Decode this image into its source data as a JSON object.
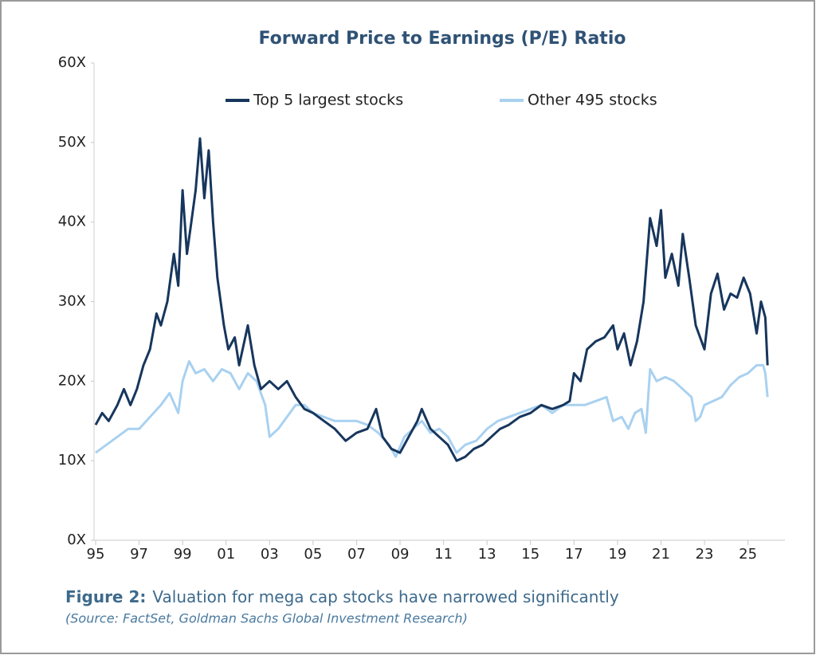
{
  "chart_data": {
    "type": "line",
    "title": "Forward Price to Earnings (P/E) Ratio",
    "figure_label": "Figure 2:",
    "caption": "Valuation for mega cap stocks have narrowed significantly",
    "source": "(Source: FactSet, Goldman Sachs Global Investment Research)",
    "xlim": [
      1995,
      2026.7
    ],
    "xticks": [
      {
        "value": 1995,
        "label": "95"
      },
      {
        "value": 1997,
        "label": "97"
      },
      {
        "value": 1999,
        "label": "99"
      },
      {
        "value": 2001,
        "label": "01"
      },
      {
        "value": 2003,
        "label": "03"
      },
      {
        "value": 2005,
        "label": "05"
      },
      {
        "value": 2007,
        "label": "07"
      },
      {
        "value": 2009,
        "label": "09"
      },
      {
        "value": 2011,
        "label": "11"
      },
      {
        "value": 2013,
        "label": "13"
      },
      {
        "value": 2015,
        "label": "15"
      },
      {
        "value": 2017,
        "label": "17"
      },
      {
        "value": 2019,
        "label": "19"
      },
      {
        "value": 2021,
        "label": "21"
      },
      {
        "value": 2023,
        "label": "23"
      },
      {
        "value": 2025,
        "label": "25"
      }
    ],
    "ylim": [
      0,
      60
    ],
    "yticks": [
      {
        "value": 0,
        "label": "0X"
      },
      {
        "value": 10,
        "label": "10X"
      },
      {
        "value": 20,
        "label": "20X"
      },
      {
        "value": 30,
        "label": "30X"
      },
      {
        "value": 40,
        "label": "40X"
      },
      {
        "value": 50,
        "label": "50X"
      },
      {
        "value": 60,
        "label": "60X"
      }
    ],
    "grid": false,
    "series": [
      {
        "name": "Top 5 largest stocks",
        "color": "#17365d",
        "x": [
          1995.0,
          1995.3,
          1995.6,
          1996.0,
          1996.3,
          1996.6,
          1996.9,
          1997.2,
          1997.5,
          1997.8,
          1998.0,
          1998.3,
          1998.6,
          1998.8,
          1999.0,
          1999.2,
          1999.4,
          1999.6,
          1999.8,
          2000.0,
          2000.2,
          2000.4,
          2000.6,
          2000.9,
          2001.1,
          2001.4,
          2001.6,
          2002.0,
          2002.3,
          2002.6,
          2003.0,
          2003.4,
          2003.8,
          2004.2,
          2004.6,
          2005.0,
          2005.5,
          2006.0,
          2006.5,
          2007.0,
          2007.5,
          2007.9,
          2008.2,
          2008.6,
          2009.0,
          2009.4,
          2009.8,
          2010.0,
          2010.4,
          2010.8,
          2011.2,
          2011.6,
          2012.0,
          2012.4,
          2012.8,
          2013.2,
          2013.6,
          2014.0,
          2014.5,
          2015.0,
          2015.5,
          2016.0,
          2016.5,
          2016.8,
          2017.0,
          2017.3,
          2017.6,
          2018.0,
          2018.4,
          2018.8,
          2019.0,
          2019.3,
          2019.6,
          2019.9,
          2020.2,
          2020.5,
          2020.8,
          2021.0,
          2021.2,
          2021.5,
          2021.8,
          2022.0,
          2022.3,
          2022.6,
          2023.0,
          2023.3,
          2023.6,
          2023.9,
          2024.2,
          2024.5,
          2024.8,
          2025.1,
          2025.4,
          2025.6,
          2025.8,
          2025.9
        ],
        "values": [
          14.5,
          16,
          15,
          17,
          19,
          17,
          19,
          22,
          24,
          28.5,
          27,
          30,
          36,
          32,
          44,
          36,
          40,
          44,
          50.5,
          43,
          49,
          40,
          33,
          27,
          24,
          25.5,
          22,
          27,
          22,
          19,
          20,
          19,
          20,
          18,
          16.5,
          16,
          15,
          14,
          12.5,
          13.5,
          14,
          16.5,
          13,
          11.5,
          11,
          13,
          15,
          16.5,
          14,
          13,
          12,
          10,
          10.5,
          11.5,
          12,
          13,
          14,
          14.5,
          15.5,
          16,
          17,
          16.5,
          17,
          17.5,
          21,
          20,
          24,
          25,
          25.5,
          27,
          24,
          26,
          22,
          25,
          30,
          40.5,
          37,
          41.5,
          33,
          36,
          32,
          38.5,
          33,
          27,
          24,
          31,
          33.5,
          29,
          31,
          30.5,
          33,
          31,
          26,
          30,
          28,
          22
        ]
      },
      {
        "name": "Other 495 stocks",
        "color": "#a9d1f0",
        "x": [
          1995.0,
          1995.5,
          1996.0,
          1996.5,
          1997.0,
          1997.5,
          1998.0,
          1998.4,
          1998.8,
          1999.0,
          1999.3,
          1999.6,
          2000.0,
          2000.4,
          2000.8,
          2001.2,
          2001.6,
          2002.0,
          2002.4,
          2002.8,
          2003.0,
          2003.4,
          2003.8,
          2004.2,
          2004.6,
          2005.0,
          2005.5,
          2006.0,
          2006.5,
          2007.0,
          2007.5,
          2008.0,
          2008.5,
          2008.8,
          2009.2,
          2009.6,
          2010.0,
          2010.4,
          2010.8,
          2011.2,
          2011.6,
          2012.0,
          2012.5,
          2013.0,
          2013.5,
          2014.0,
          2014.5,
          2015.0,
          2015.5,
          2016.0,
          2016.5,
          2017.0,
          2017.5,
          2018.0,
          2018.5,
          2018.8,
          2019.2,
          2019.5,
          2019.8,
          2020.1,
          2020.3,
          2020.5,
          2020.8,
          2021.2,
          2021.6,
          2022.0,
          2022.4,
          2022.6,
          2022.8,
          2023.0,
          2023.4,
          2023.8,
          2024.2,
          2024.6,
          2025.0,
          2025.4,
          2025.7,
          2025.8,
          2025.9
        ],
        "values": [
          11,
          12,
          13,
          14,
          14,
          15.5,
          17,
          18.5,
          16,
          20,
          22.5,
          21,
          21.5,
          20,
          21.5,
          21,
          19,
          21,
          20,
          17,
          13,
          14,
          15.5,
          17,
          17,
          16,
          15.5,
          15,
          15,
          15,
          14.5,
          13.5,
          12,
          10.5,
          13,
          14,
          15,
          13.5,
          14,
          13,
          11,
          12,
          12.5,
          14,
          15,
          15.5,
          16,
          16.5,
          17,
          16,
          17,
          17,
          17,
          17.5,
          18,
          15,
          15.5,
          14,
          16,
          16.5,
          13.5,
          21.5,
          20,
          20.5,
          20,
          19,
          18,
          15,
          15.5,
          17,
          17.5,
          18,
          19.5,
          20.5,
          21,
          22,
          22,
          21,
          18
        ]
      }
    ]
  }
}
